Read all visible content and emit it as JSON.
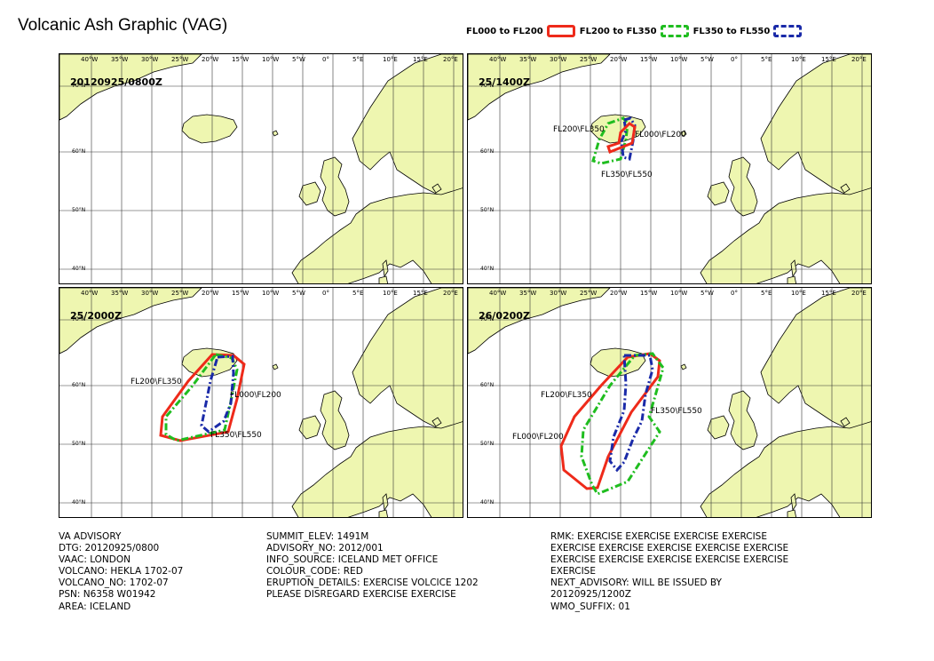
{
  "title": "Volcanic Ash Graphic (VAG)",
  "legend": [
    {
      "label": "FL000 to FL200",
      "color": "#ee2a1a",
      "style": "solid"
    },
    {
      "label": "FL200 to FL350",
      "color": "#1fbd1f",
      "style": "dash-dot"
    },
    {
      "label": "FL350 to FL550",
      "color": "#1a2aa8",
      "style": "dash-dot"
    }
  ],
  "map": {
    "lon_ticks": [
      "40°W",
      "35°W",
      "30°W",
      "25°W",
      "20°W",
      "15°W",
      "10°W",
      "5°W",
      "0°",
      "5°E",
      "10°E",
      "15°E",
      "20°E"
    ],
    "lat_ticks": [
      "70°N",
      "60°N",
      "50°N",
      "40°N"
    ],
    "land_color": "#eef6b0",
    "grid_color": "#333333"
  },
  "panels": [
    {
      "time": "20120925/0800Z",
      "labels": []
    },
    {
      "time": "25/1400Z",
      "labels": [
        "FL200\\FL350",
        "FL000\\FL200",
        "FL350\\FL550"
      ]
    },
    {
      "time": "25/2000Z",
      "labels": [
        "FL200\\FL350",
        "FL000\\FL200",
        "FL350\\FL550"
      ]
    },
    {
      "time": "26/0200Z",
      "labels": [
        "FL200\\FL350",
        "FL350\\FL550",
        "FL000\\FL200"
      ]
    }
  ],
  "advisory": {
    "col1": [
      "VA ADVISORY",
      "DTG: 20120925/0800",
      "VAAC: LONDON",
      "VOLCANO: HEKLA 1702-07",
      "VOLCANO_NO: 1702-07",
      "PSN: N6358 W01942",
      "AREA: ICELAND"
    ],
    "col2": [
      "SUMMIT_ELEV: 1491M",
      "ADVISORY_NO: 2012/001",
      "INFO_SOURCE: ICELAND MET OFFICE",
      "COLOUR_CODE: RED",
      "ERUPTION_DETAILS: EXERCISE VOLCICE 1202",
      "PLEASE DISREGARD EXERCISE EXERCISE"
    ],
    "col3": [
      "RMK: EXERCISE EXERCISE EXERCISE EXERCISE",
      "EXERCISE EXERCISE EXERCISE EXERCISE EXERCISE",
      "EXERCISE EXERCISE EXERCISE EXERCISE EXERCISE",
      "EXERCISE",
      "NEXT_ADVISORY: WILL BE ISSUED BY",
      "20120925/1200Z",
      "WMO_SUFFIX: 01"
    ]
  }
}
